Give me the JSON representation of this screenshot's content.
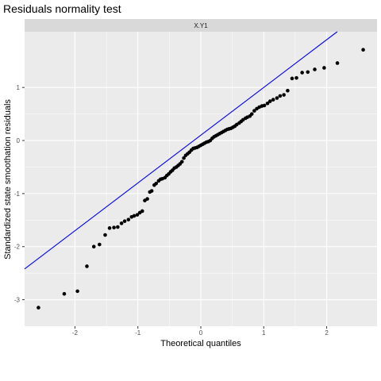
{
  "chart_data": {
    "type": "scatter",
    "title": "Residuals normality test",
    "facet_label": "X.Y1",
    "xlabel": "Theoretical quantiles",
    "ylabel": "Standardized state smoothation residuals",
    "xlim": [
      -2.8,
      2.8
    ],
    "ylim": [
      -3.5,
      2.05
    ],
    "x_ticks": [
      -2,
      -1,
      0,
      1,
      2
    ],
    "x_tick_labels": [
      "-2",
      "-1",
      "0",
      "1",
      "2"
    ],
    "y_ticks": [
      -3,
      -2,
      -1,
      0,
      1
    ],
    "y_tick_labels": [
      "-3",
      "-2",
      "-1",
      "0",
      "1"
    ],
    "grid": true,
    "colors": {
      "points": "#000000",
      "line": "#0000ff",
      "panel": "#ebebeb",
      "strip": "#d9d9d9",
      "grid": "#ffffff"
    },
    "reference_line": {
      "intercept": 0.1,
      "slope": 0.9
    },
    "points": [
      [
        -2.58,
        -3.15
      ],
      [
        -2.17,
        -2.89
      ],
      [
        -1.96,
        -2.84
      ],
      [
        -1.81,
        -2.37
      ],
      [
        -1.7,
        -2.0
      ],
      [
        -1.61,
        -1.96
      ],
      [
        -1.52,
        -1.78
      ],
      [
        -1.45,
        -1.65
      ],
      [
        -1.38,
        -1.64
      ],
      [
        -1.32,
        -1.63
      ],
      [
        -1.26,
        -1.56
      ],
      [
        -1.21,
        -1.52
      ],
      [
        -1.15,
        -1.49
      ],
      [
        -1.1,
        -1.44
      ],
      [
        -1.06,
        -1.42
      ],
      [
        -1.01,
        -1.4
      ],
      [
        -0.97,
        -1.36
      ],
      [
        -0.93,
        -1.33
      ],
      [
        -0.89,
        -1.13
      ],
      [
        -0.85,
        -1.1
      ],
      [
        -0.81,
        -0.97
      ],
      [
        -0.78,
        -0.95
      ],
      [
        -0.74,
        -0.84
      ],
      [
        -0.71,
        -0.81
      ],
      [
        -0.67,
        -0.76
      ],
      [
        -0.64,
        -0.73
      ],
      [
        -0.61,
        -0.72
      ],
      [
        -0.57,
        -0.7
      ],
      [
        -0.54,
        -0.66
      ],
      [
        -0.51,
        -0.63
      ],
      [
        -0.48,
        -0.59
      ],
      [
        -0.45,
        -0.56
      ],
      [
        -0.42,
        -0.52
      ],
      [
        -0.39,
        -0.5
      ],
      [
        -0.36,
        -0.47
      ],
      [
        -0.33,
        -0.44
      ],
      [
        -0.3,
        -0.4
      ],
      [
        -0.27,
        -0.33
      ],
      [
        -0.24,
        -0.28
      ],
      [
        -0.21,
        -0.25
      ],
      [
        -0.18,
        -0.22
      ],
      [
        -0.15,
        -0.18
      ],
      [
        -0.12,
        -0.15
      ],
      [
        -0.09,
        -0.14
      ],
      [
        -0.06,
        -0.13
      ],
      [
        -0.03,
        -0.11
      ],
      [
        0.0,
        -0.09
      ],
      [
        0.03,
        -0.07
      ],
      [
        0.06,
        -0.05
      ],
      [
        0.09,
        -0.03
      ],
      [
        0.12,
        -0.02
      ],
      [
        0.15,
        0.0
      ],
      [
        0.18,
        0.04
      ],
      [
        0.21,
        0.07
      ],
      [
        0.24,
        0.09
      ],
      [
        0.27,
        0.11
      ],
      [
        0.3,
        0.13
      ],
      [
        0.33,
        0.15
      ],
      [
        0.36,
        0.17
      ],
      [
        0.39,
        0.19
      ],
      [
        0.42,
        0.21
      ],
      [
        0.45,
        0.22
      ],
      [
        0.48,
        0.23
      ],
      [
        0.51,
        0.25
      ],
      [
        0.54,
        0.27
      ],
      [
        0.57,
        0.3
      ],
      [
        0.61,
        0.33
      ],
      [
        0.64,
        0.36
      ],
      [
        0.67,
        0.39
      ],
      [
        0.71,
        0.42
      ],
      [
        0.74,
        0.44
      ],
      [
        0.78,
        0.46
      ],
      [
        0.81,
        0.5
      ],
      [
        0.85,
        0.56
      ],
      [
        0.89,
        0.6
      ],
      [
        0.93,
        0.63
      ],
      [
        0.97,
        0.65
      ],
      [
        1.01,
        0.66
      ],
      [
        1.06,
        0.7
      ],
      [
        1.1,
        0.74
      ],
      [
        1.15,
        0.77
      ],
      [
        1.21,
        0.8
      ],
      [
        1.26,
        0.84
      ],
      [
        1.32,
        0.86
      ],
      [
        1.38,
        0.94
      ],
      [
        1.45,
        1.17
      ],
      [
        1.52,
        1.18
      ],
      [
        1.61,
        1.28
      ],
      [
        1.7,
        1.29
      ],
      [
        1.81,
        1.34
      ],
      [
        1.96,
        1.37
      ],
      [
        2.17,
        1.46
      ],
      [
        2.58,
        1.71
      ]
    ]
  }
}
